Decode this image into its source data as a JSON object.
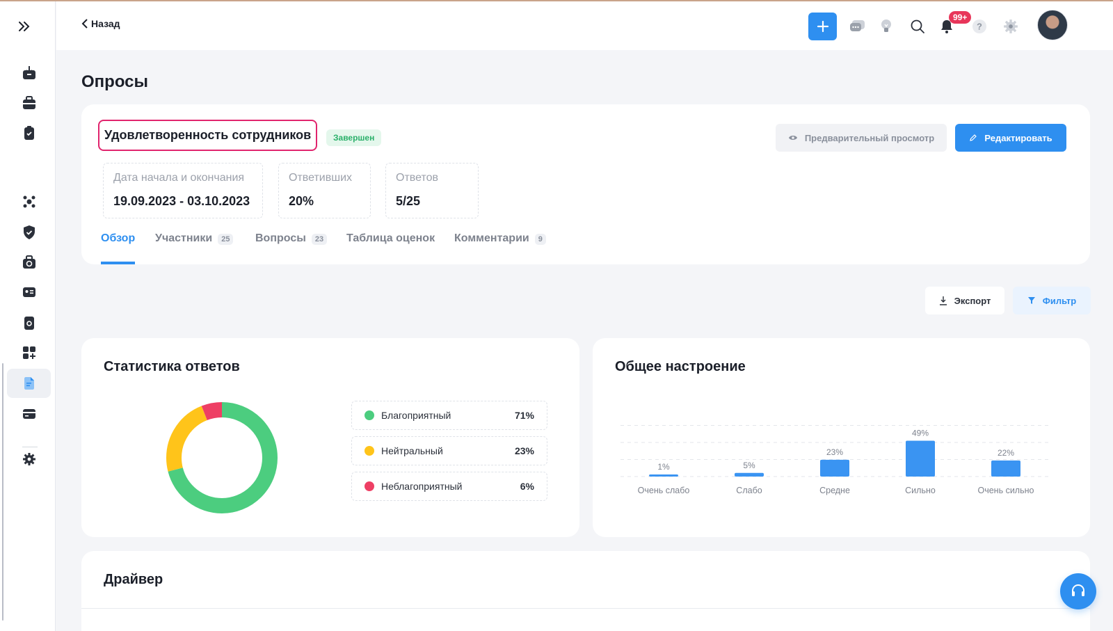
{
  "header": {
    "back_label": "Назад",
    "notifications_badge": "99+"
  },
  "page": {
    "title": "Опросы"
  },
  "survey": {
    "name": "Удовлетворенность сотрудников",
    "status": "Завершен",
    "preview_label": "Предварительный просмотр",
    "edit_label": "Редактировать",
    "stats": [
      {
        "label": "Дата начала и окончания",
        "value": "19.09.2023 - 03.10.2023"
      },
      {
        "label": "Ответивших",
        "value": "20%"
      },
      {
        "label": "Ответов",
        "value": "5/25"
      }
    ],
    "tabs": [
      {
        "label": "Обзор",
        "count": ""
      },
      {
        "label": "Участники",
        "count": "25"
      },
      {
        "label": "Вопросы",
        "count": "23"
      },
      {
        "label": "Таблица оценок",
        "count": ""
      },
      {
        "label": "Комментарии",
        "count": "9"
      }
    ]
  },
  "toolbar": {
    "export_label": "Экспорт",
    "filter_label": "Фильтр"
  },
  "response_stats": {
    "title": "Статистика ответов",
    "legend": [
      {
        "label": "Благоприятный",
        "pct": "71%",
        "color": "#4ccd7f"
      },
      {
        "label": "Нейтральный",
        "pct": "23%",
        "color": "#ffc41a"
      },
      {
        "label": "Неблагоприятный",
        "pct": "6%",
        "color": "#ee3f64"
      }
    ]
  },
  "mood": {
    "title": "Общее настроение"
  },
  "driver": {
    "title": "Драйвер"
  },
  "chart_data": [
    {
      "type": "pie",
      "title": "Статистика ответов",
      "categories": [
        "Благоприятный",
        "Нейтральный",
        "Неблагоприятный"
      ],
      "values": [
        71,
        23,
        6
      ],
      "colors": [
        "#4ccd7f",
        "#ffc41a",
        "#ee3f64"
      ],
      "legend": "right"
    },
    {
      "type": "bar",
      "title": "Общее настроение",
      "categories": [
        "Очень слабо",
        "Слабо",
        "Средне",
        "Сильно",
        "Очень сильно"
      ],
      "values": [
        1,
        5,
        23,
        49,
        22
      ],
      "labels": [
        "1%",
        "5%",
        "23%",
        "49%",
        "22%"
      ],
      "color": "#3a94f2",
      "grid": true
    }
  ]
}
